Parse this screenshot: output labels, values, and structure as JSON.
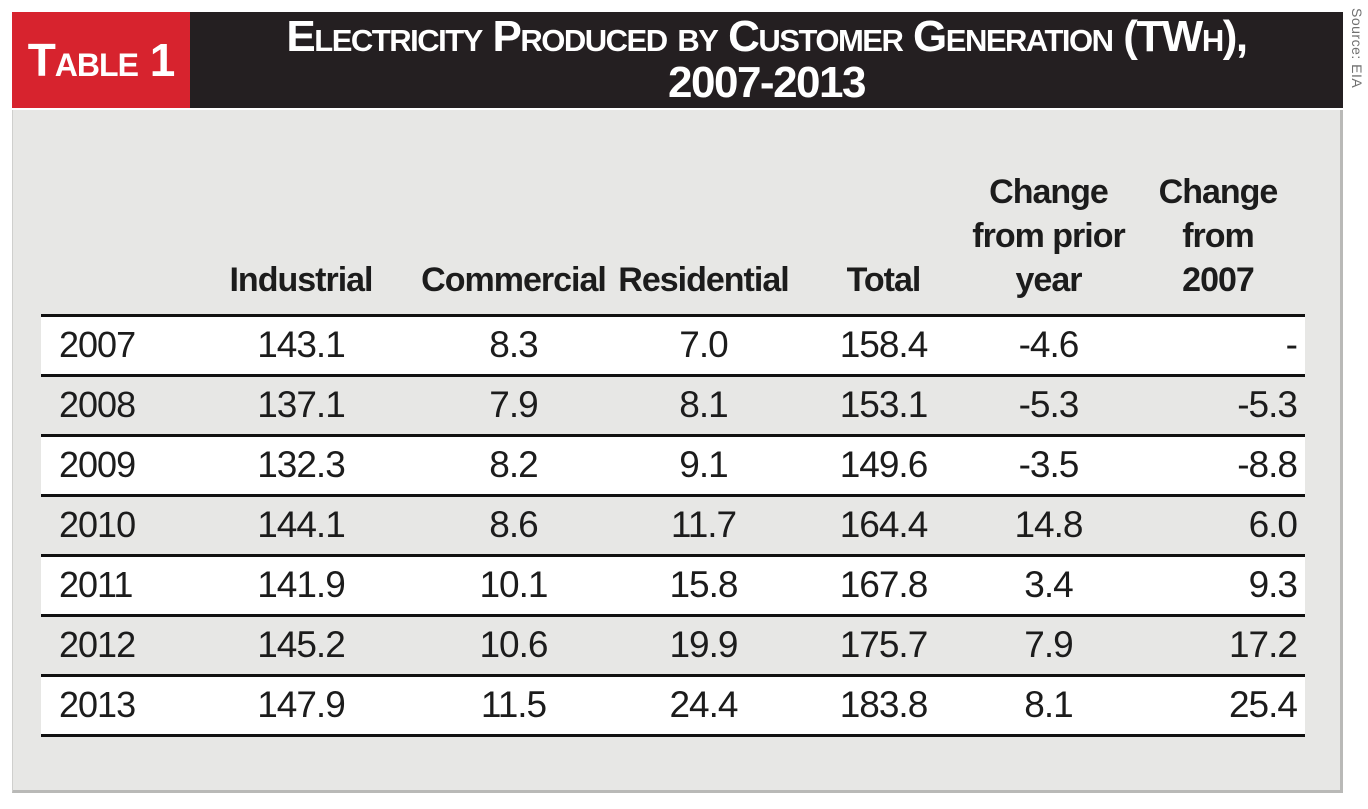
{
  "figure": {
    "label": "Table 1",
    "title_line1": "Electricity Produced by Customer Generation (TWh),",
    "title_line2": "2007-2013",
    "source": "Source: EIA"
  },
  "table_display": {
    "header_lines": [
      "",
      "Industrial",
      "Commercial",
      "Residential",
      "Total",
      "Change\nfrom prior\nyear",
      "Change\nfrom\n2007"
    ]
  },
  "chart_data": {
    "type": "table",
    "label": "Table 1",
    "title": "Electricity Produced by Customer Generation (TWh), 2007-2013",
    "units": "TWh",
    "source": "Source: EIA",
    "columns": [
      "Year",
      "Industrial",
      "Commercial",
      "Residential",
      "Total",
      "Change from prior year",
      "Change from 2007"
    ],
    "rows": [
      [
        "2007",
        "143.1",
        "8.3",
        "7.0",
        "158.4",
        "-4.6",
        "-"
      ],
      [
        "2008",
        "137.1",
        "7.9",
        "8.1",
        "153.1",
        "-5.3",
        "-5.3"
      ],
      [
        "2009",
        "132.3",
        "8.2",
        "9.1",
        "149.6",
        "-3.5",
        "-8.8"
      ],
      [
        "2010",
        "144.1",
        "8.6",
        "11.7",
        "164.4",
        "14.8",
        "6.0"
      ],
      [
        "2011",
        "141.9",
        "10.1",
        "15.8",
        "167.8",
        "3.4",
        "9.3"
      ],
      [
        "2012",
        "145.2",
        "10.6",
        "19.9",
        "175.7",
        "7.9",
        "17.2"
      ],
      [
        "2013",
        "147.9",
        "11.5",
        "24.4",
        "183.8",
        "8.1",
        "25.4"
      ]
    ]
  },
  "colors": {
    "accent_red": "#d7232e",
    "title_bar_black": "#241f21",
    "panel_gray": "#e7e7e5",
    "row_stripe_white": "#ffffff",
    "rule_black": "#111111",
    "source_text_gray": "#707070",
    "border_gray": "#b9b9b7"
  }
}
